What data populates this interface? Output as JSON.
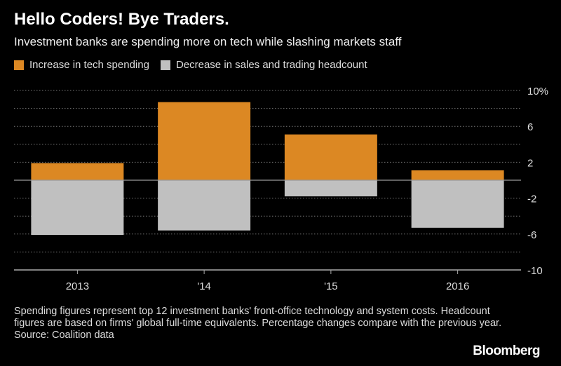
{
  "chart_data": {
    "type": "bar",
    "title": "Hello Coders! Bye Traders.",
    "subtitle": "Investment banks are spending more on tech while slashing markets staff",
    "categories": [
      "2013",
      "'14",
      "'15",
      "2016"
    ],
    "series": [
      {
        "name": "Increase in tech spending",
        "color": "#dc8823",
        "values": [
          1.9,
          8.7,
          5.1,
          1.1
        ]
      },
      {
        "name": "Decrease in sales and trading headcount",
        "color": "#c0c0c0",
        "values": [
          -6.1,
          -5.6,
          -1.8,
          -5.3
        ]
      }
    ],
    "ylim": [
      -10,
      10
    ],
    "y_ticks": [
      10,
      6,
      2,
      -2,
      -6,
      -10
    ],
    "y_tick_labels": [
      "10%",
      "6",
      "2",
      "-2",
      "-6",
      "-10"
    ],
    "y_gridlines_every": 2,
    "grid": true,
    "y_axis_side": "right",
    "legend_placement": "top-left",
    "stacked": "diverging"
  },
  "notes": "Spending figures represent top 12 investment banks' front-office technology and system costs. Headcount figures are based on firms' global full-time equivalents. Percentage changes compare with the previous year.",
  "source": "Source: Coalition data",
  "brand": "Bloomberg"
}
